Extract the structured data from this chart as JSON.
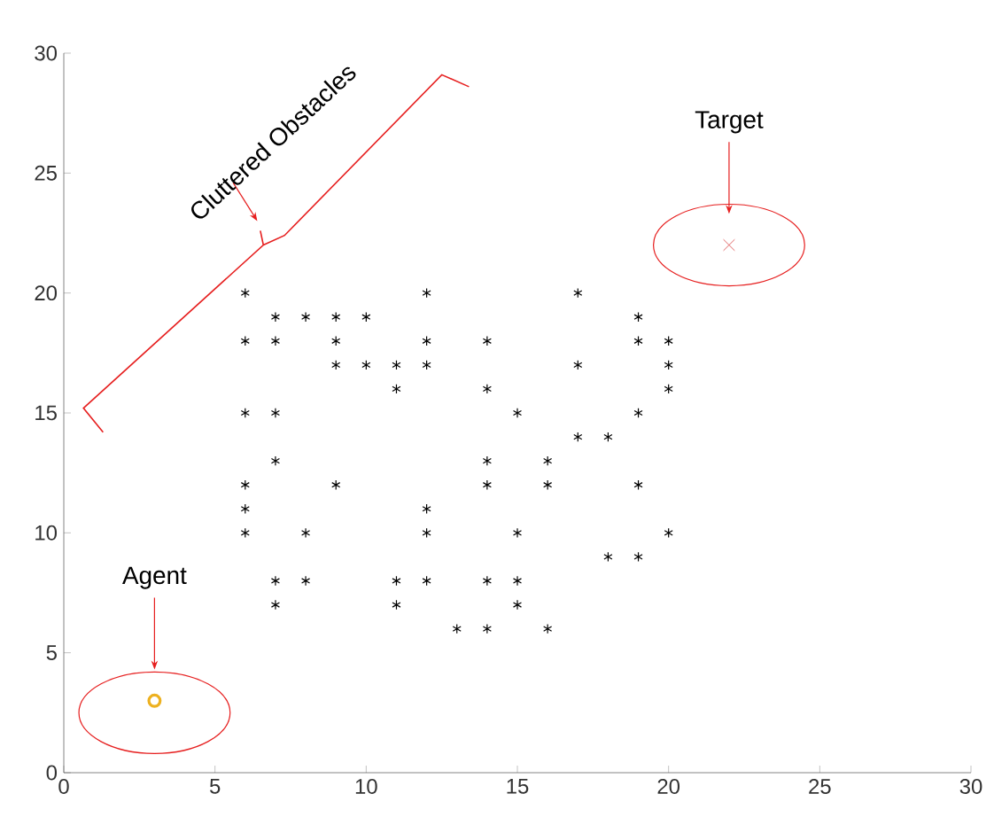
{
  "chart_data": {
    "type": "scatter",
    "xlim": [
      0,
      30
    ],
    "ylim": [
      0,
      30
    ],
    "xticks": [
      0,
      5,
      10,
      15,
      20,
      25,
      30
    ],
    "yticks": [
      0,
      5,
      10,
      15,
      20,
      25,
      30
    ],
    "grid": false,
    "series": [
      {
        "color": "#000000",
        "x": [
          6,
          6,
          6,
          6,
          6,
          6,
          7,
          7,
          7,
          7,
          7,
          7,
          8,
          8,
          8,
          9,
          9,
          9,
          9,
          10,
          10,
          11,
          11,
          11,
          11,
          12,
          12,
          12,
          12,
          12,
          12,
          13,
          14,
          14,
          14,
          14,
          14,
          14,
          15,
          15,
          15,
          15,
          16,
          16,
          16,
          17,
          17,
          17,
          18,
          18,
          19,
          19,
          19,
          19,
          19,
          20,
          20,
          20,
          20
        ],
        "values": [
          20,
          18,
          15,
          12,
          11,
          10,
          19,
          18,
          15,
          13,
          8,
          7,
          19,
          10,
          8,
          19,
          18,
          17,
          12,
          19,
          17,
          17,
          16,
          8,
          7,
          20,
          18,
          17,
          11,
          10,
          8,
          6,
          18,
          16,
          13,
          12,
          8,
          6,
          15,
          10,
          8,
          7,
          13,
          12,
          6,
          20,
          17,
          14,
          14,
          9,
          19,
          18,
          15,
          12,
          9,
          18,
          17,
          16,
          10
        ]
      },
      {
        "color": "#edb120",
        "marker": "circle",
        "x": [
          3
        ],
        "values": [
          3
        ]
      },
      {
        "color": "#e06666",
        "marker": "cross",
        "x": [
          22
        ],
        "values": [
          22
        ]
      }
    ],
    "annotations": [
      "Target",
      "Agent",
      "Cluttered Obstacles"
    ]
  }
}
